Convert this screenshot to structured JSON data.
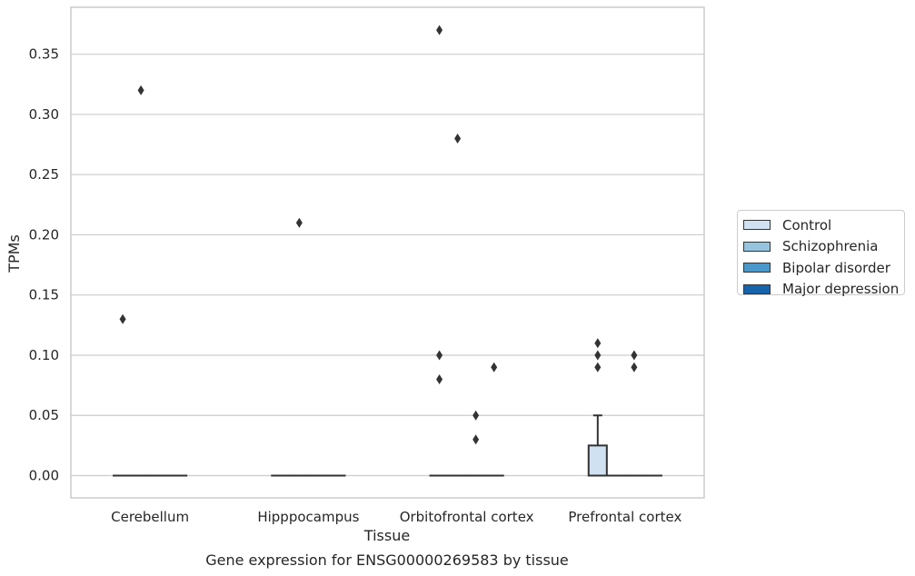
{
  "chart_data": {
    "type": "box",
    "title": "Gene expression for ENSG00000269583 by tissue",
    "xlabel": "Tissue",
    "ylabel": "TPMs",
    "categories": [
      "Cerebellum",
      "Hipppocampus",
      "Orbitofrontal cortex",
      "Prefrontal cortex"
    ],
    "ylim": [
      -0.0185,
      0.389
    ],
    "yticks": [
      0.0,
      0.05,
      0.1,
      0.15,
      0.2,
      0.25,
      0.3,
      0.35
    ],
    "ytick_labels": [
      "0.00",
      "0.05",
      "0.10",
      "0.15",
      "0.20",
      "0.25",
      "0.30",
      "0.35"
    ],
    "grid": true,
    "legend_position": "right",
    "series": [
      {
        "name": "Control",
        "color": "#d0e1f2",
        "boxes": [
          {
            "q1": 0,
            "median": 0,
            "q3": 0,
            "whislo": 0,
            "whishi": 0,
            "fliers": [
              0.13
            ]
          },
          {
            "q1": 0,
            "median": 0,
            "q3": 0,
            "whislo": 0,
            "whishi": 0,
            "fliers": []
          },
          {
            "q1": 0,
            "median": 0,
            "q3": 0,
            "whislo": 0,
            "whishi": 0,
            "fliers": [
              0.37,
              0.1,
              0.08
            ]
          },
          {
            "q1": 0,
            "median": 0,
            "q3": 0.025,
            "whislo": 0,
            "whishi": 0.05,
            "fliers": [
              0.11,
              0.1,
              0.09
            ]
          }
        ]
      },
      {
        "name": "Schizophrenia",
        "color": "#94c4df",
        "boxes": [
          {
            "q1": 0,
            "median": 0,
            "q3": 0,
            "whislo": 0,
            "whishi": 0,
            "fliers": [
              0.32
            ]
          },
          {
            "q1": 0,
            "median": 0,
            "q3": 0,
            "whislo": 0,
            "whishi": 0,
            "fliers": [
              0.21
            ]
          },
          {
            "q1": 0,
            "median": 0,
            "q3": 0,
            "whislo": 0,
            "whishi": 0,
            "fliers": [
              0.28
            ]
          },
          {
            "q1": 0,
            "median": 0,
            "q3": 0,
            "whislo": 0,
            "whishi": 0,
            "fliers": []
          }
        ]
      },
      {
        "name": "Bipolar disorder",
        "color": "#4a98c9",
        "boxes": [
          {
            "q1": 0,
            "median": 0,
            "q3": 0,
            "whislo": 0,
            "whishi": 0,
            "fliers": []
          },
          {
            "q1": 0,
            "median": 0,
            "q3": 0,
            "whislo": 0,
            "whishi": 0,
            "fliers": []
          },
          {
            "q1": 0,
            "median": 0,
            "q3": 0,
            "whislo": 0,
            "whishi": 0,
            "fliers": [
              0.05,
              0.03
            ]
          },
          {
            "q1": 0,
            "median": 0,
            "q3": 0,
            "whislo": 0,
            "whishi": 0,
            "fliers": [
              0.1,
              0.09
            ]
          }
        ]
      },
      {
        "name": "Major depression",
        "color": "#1764ab",
        "boxes": [
          {
            "q1": 0,
            "median": 0,
            "q3": 0,
            "whislo": 0,
            "whishi": 0,
            "fliers": []
          },
          {
            "q1": 0,
            "median": 0,
            "q3": 0,
            "whislo": 0,
            "whishi": 0,
            "fliers": []
          },
          {
            "q1": 0,
            "median": 0,
            "q3": 0,
            "whislo": 0,
            "whishi": 0,
            "fliers": [
              0.09
            ]
          },
          {
            "q1": 0,
            "median": 0,
            "q3": 0,
            "whislo": 0,
            "whishi": 0,
            "fliers": []
          }
        ]
      }
    ]
  }
}
